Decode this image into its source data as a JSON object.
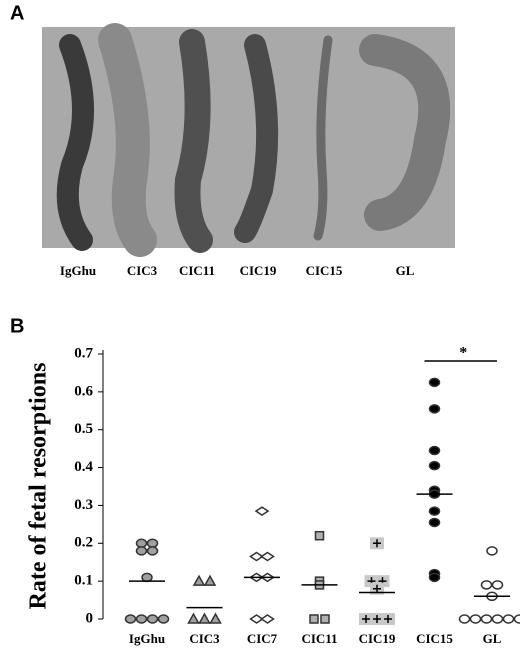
{
  "panel_a": {
    "letter": "A",
    "photo_labels": [
      "IgGhu",
      "CIC3",
      "CIC11",
      "CIC19",
      "CIC15",
      "GL"
    ]
  },
  "chart_data": {
    "type": "strip",
    "letter": "B",
    "ylabel": "Rate of fetal resorptions",
    "categories": [
      "IgGhu",
      "CIC3",
      "CIC7",
      "CIC11",
      "CIC19",
      "CIC15",
      "GL"
    ],
    "points": [
      [
        0.2,
        0.2,
        0.18,
        0.18,
        0.11,
        0,
        0,
        0,
        0
      ],
      [
        0.1,
        0.1,
        0,
        0,
        0
      ],
      [
        0.285,
        0.165,
        0.165,
        0.11,
        0.11,
        0,
        0
      ],
      [
        0.22,
        0.1,
        0.09,
        0,
        0
      ],
      [
        0.2,
        0.1,
        0.1,
        0.08,
        0,
        0,
        0
      ],
      [
        0.625,
        0.555,
        0.445,
        0.405,
        0.34,
        0.33,
        0.285,
        0.255,
        0.12,
        0.11
      ],
      [
        0.18,
        0.09,
        0.09,
        0.06,
        0,
        0,
        0,
        0,
        0,
        0
      ]
    ],
    "means": [
      0.1,
      0.03,
      0.11,
      0.09,
      0.07,
      0.33,
      0.06
    ],
    "markers": [
      "circle",
      "triangle",
      "diamond",
      "square",
      "plus",
      "circle",
      "circle"
    ],
    "fills": [
      "#a0a0a0",
      "#a0a0a0",
      "#ffffff",
      "#b0b0b0",
      "#c8c8c8",
      "#000000",
      "#ffffff"
    ],
    "ylim": [
      0,
      0.7
    ],
    "yticks": [
      0,
      0.1,
      0.2,
      0.3,
      0.4,
      0.5,
      0.6,
      0.7
    ],
    "annotation": "*"
  }
}
